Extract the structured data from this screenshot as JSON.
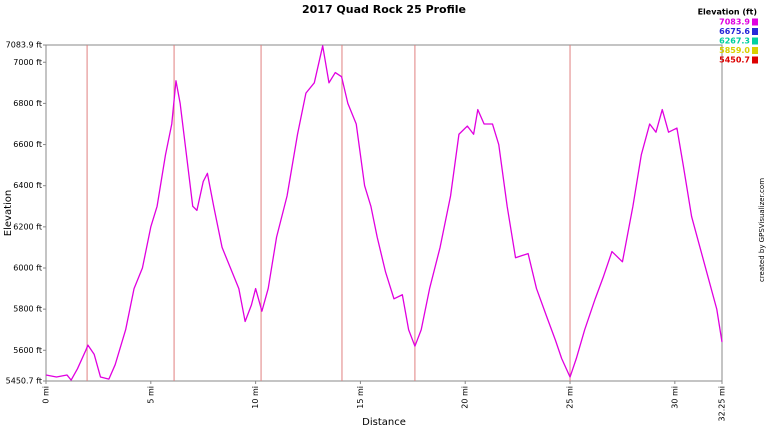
{
  "chart_data": {
    "type": "line",
    "title": "2017 Quad Rock 25 Profile",
    "x_label": "Distance",
    "y_label": "Elevation",
    "credit": "created by GPSVisualizer.com",
    "x": [
      0,
      0.5,
      1,
      1.2,
      1.5,
      1.9,
      2.0,
      2.3,
      2.6,
      3.0,
      3.3,
      3.8,
      4.2,
      4.6,
      5.0,
      5.3,
      5.7,
      6.0,
      6.2,
      6.4,
      6.7,
      7.0,
      7.2,
      7.5,
      7.7,
      8.0,
      8.4,
      8.8,
      9.2,
      9.5,
      9.8,
      10.0,
      10.3,
      10.6,
      11.0,
      11.5,
      12.0,
      12.4,
      12.8,
      13.2,
      13.5,
      13.8,
      14.1,
      14.4,
      14.8,
      15.2,
      15.5,
      15.8,
      16.2,
      16.6,
      17.0,
      17.3,
      17.6,
      17.9,
      18.3,
      18.8,
      19.3,
      19.7,
      20.1,
      20.4,
      20.6,
      20.9,
      21.3,
      21.6,
      22.0,
      22.4,
      22.7,
      23.0,
      23.4,
      23.9,
      24.3,
      24.6,
      25.0,
      25.3,
      25.7,
      26.2,
      26.6,
      27.0,
      27.5,
      28.0,
      28.4,
      28.8,
      29.1,
      29.4,
      29.7,
      30.1,
      30.4,
      30.8,
      31.2,
      31.6,
      32.0,
      32.25
    ],
    "values": [
      5480,
      5470,
      5480,
      5455,
      5510,
      5600,
      5625,
      5580,
      5470,
      5460,
      5530,
      5700,
      5900,
      6000,
      6200,
      6300,
      6550,
      6700,
      6910,
      6800,
      6550,
      6300,
      6280,
      6420,
      6460,
      6300,
      6100,
      6000,
      5900,
      5740,
      5820,
      5900,
      5790,
      5900,
      6150,
      6350,
      6650,
      6850,
      6900,
      7080,
      6900,
      6950,
      6930,
      6800,
      6700,
      6400,
      6300,
      6150,
      5980,
      5850,
      5870,
      5700,
      5620,
      5700,
      5900,
      6100,
      6350,
      6650,
      6690,
      6650,
      6770,
      6700,
      6700,
      6600,
      6300,
      6050,
      6060,
      6070,
      5900,
      5760,
      5650,
      5560,
      5470,
      5560,
      5700,
      5850,
      5960,
      6080,
      6030,
      6300,
      6550,
      6700,
      6660,
      6770,
      6660,
      6680,
      6500,
      6250,
      6100,
      5950,
      5800,
      5640
    ],
    "xlim": [
      0,
      32.25
    ],
    "ylim": [
      5450.7,
      7083.9
    ],
    "xticks": [
      {
        "value": 0,
        "label": "0 mi"
      },
      {
        "value": 5,
        "label": "5 mi"
      },
      {
        "value": 10,
        "label": "10 mi"
      },
      {
        "value": 15,
        "label": "15 mi"
      },
      {
        "value": 20,
        "label": "20 mi"
      },
      {
        "value": 25,
        "label": "25 mi"
      },
      {
        "value": 30,
        "label": "30 mi"
      },
      {
        "value": 32.25,
        "label": "32.25 mi"
      }
    ],
    "yticks": [
      {
        "value": 5450.7,
        "label": "5450.7 ft"
      },
      {
        "value": 5600,
        "label": "5600 ft"
      },
      {
        "value": 5800,
        "label": "5800 ft"
      },
      {
        "value": 6000,
        "label": "6000 ft"
      },
      {
        "value": 6200,
        "label": "6200 ft"
      },
      {
        "value": 6400,
        "label": "6400 ft"
      },
      {
        "value": 6600,
        "label": "6600 ft"
      },
      {
        "value": 6800,
        "label": "6800 ft"
      },
      {
        "value": 7000,
        "label": "7000 ft"
      },
      {
        "value": 7083.9,
        "label": "7083.9 ft"
      }
    ],
    "markers": [
      1.96,
      6.11,
      10.26,
      14.12,
      17.6,
      25.0
    ],
    "marker_color": "#e08080",
    "grid": false,
    "legend": {
      "title": "Elevation (ft)",
      "entries": [
        {
          "value": 7083.9,
          "color": "#e000e0"
        },
        {
          "value": 6675.6,
          "color": "#2828d8"
        },
        {
          "value": 6267.3,
          "color": "#00d0a0"
        },
        {
          "value": 5859.0,
          "label": "5859.0",
          "color": "#d8d000"
        },
        {
          "value": 5450.7,
          "color": "#dd0000"
        }
      ]
    }
  }
}
